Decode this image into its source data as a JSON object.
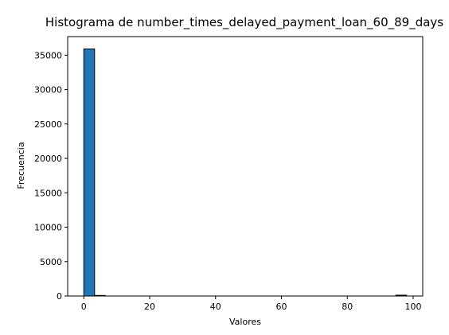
{
  "chart_data": {
    "type": "bar",
    "title": "Histograma de number_times_delayed_payment_loan_60_89_days",
    "xlabel": "Valores",
    "ylabel": "Frecuencia",
    "xlim": [
      -4.9,
      102.9
    ],
    "ylim": [
      0,
      37700
    ],
    "x_ticks": [
      0,
      20,
      40,
      60,
      80,
      100
    ],
    "y_ticks": [
      0,
      5000,
      10000,
      15000,
      20000,
      25000,
      30000,
      35000
    ],
    "bins": [
      {
        "x0": 0.0,
        "x1": 3.27,
        "value": 35900
      },
      {
        "x0": 3.27,
        "x1": 6.53,
        "value": 80
      },
      {
        "x0": 6.53,
        "x1": 9.8,
        "value": 0
      },
      {
        "x0": 9.8,
        "x1": 13.07,
        "value": 0
      },
      {
        "x0": 13.07,
        "x1": 16.33,
        "value": 0
      },
      {
        "x0": 16.33,
        "x1": 19.6,
        "value": 0
      },
      {
        "x0": 19.6,
        "x1": 22.87,
        "value": 0
      },
      {
        "x0": 22.87,
        "x1": 26.13,
        "value": 0
      },
      {
        "x0": 26.13,
        "x1": 29.4,
        "value": 0
      },
      {
        "x0": 29.4,
        "x1": 32.67,
        "value": 0
      },
      {
        "x0": 32.67,
        "x1": 35.93,
        "value": 0
      },
      {
        "x0": 35.93,
        "x1": 39.2,
        "value": 0
      },
      {
        "x0": 39.2,
        "x1": 42.47,
        "value": 0
      },
      {
        "x0": 42.47,
        "x1": 45.73,
        "value": 0
      },
      {
        "x0": 45.73,
        "x1": 49.0,
        "value": 0
      },
      {
        "x0": 49.0,
        "x1": 52.27,
        "value": 0
      },
      {
        "x0": 52.27,
        "x1": 55.53,
        "value": 0
      },
      {
        "x0": 55.53,
        "x1": 58.8,
        "value": 0
      },
      {
        "x0": 58.8,
        "x1": 62.07,
        "value": 0
      },
      {
        "x0": 62.07,
        "x1": 65.33,
        "value": 0
      },
      {
        "x0": 65.33,
        "x1": 68.6,
        "value": 0
      },
      {
        "x0": 68.6,
        "x1": 71.87,
        "value": 0
      },
      {
        "x0": 71.87,
        "x1": 75.13,
        "value": 0
      },
      {
        "x0": 75.13,
        "x1": 78.4,
        "value": 0
      },
      {
        "x0": 78.4,
        "x1": 81.67,
        "value": 0
      },
      {
        "x0": 81.67,
        "x1": 84.93,
        "value": 0
      },
      {
        "x0": 84.93,
        "x1": 88.2,
        "value": 0
      },
      {
        "x0": 88.2,
        "x1": 91.47,
        "value": 0
      },
      {
        "x0": 91.47,
        "x1": 94.73,
        "value": 0
      },
      {
        "x0": 94.73,
        "x1": 98.0,
        "value": 120
      }
    ],
    "colors": {
      "bar": "#1f77b4",
      "edge": "#000000",
      "axis": "#000000"
    },
    "grid": false,
    "legend": false
  }
}
